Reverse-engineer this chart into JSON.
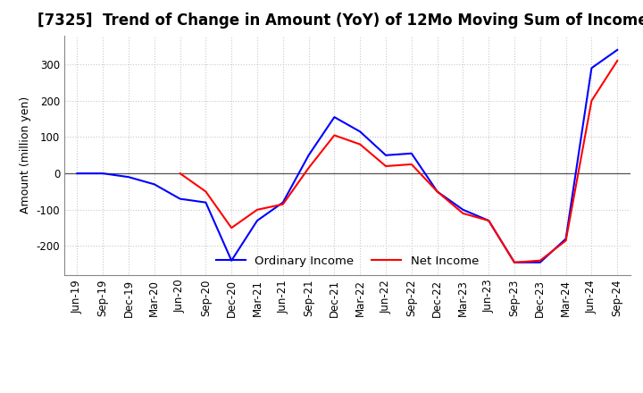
{
  "title": "[7325]  Trend of Change in Amount (YoY) of 12Mo Moving Sum of Incomes",
  "ylabel": "Amount (million yen)",
  "x_labels": [
    "Jun-19",
    "Sep-19",
    "Dec-19",
    "Mar-20",
    "Jun-20",
    "Sep-20",
    "Dec-20",
    "Mar-21",
    "Jun-21",
    "Sep-21",
    "Dec-21",
    "Mar-22",
    "Jun-22",
    "Sep-22",
    "Dec-22",
    "Mar-23",
    "Jun-23",
    "Sep-23",
    "Dec-23",
    "Mar-24",
    "Jun-24",
    "Sep-24"
  ],
  "ordinary_income": [
    0,
    0,
    -10,
    -30,
    -70,
    -80,
    -240,
    -130,
    -80,
    50,
    155,
    115,
    50,
    55,
    -50,
    -100,
    -130,
    -245,
    -245,
    -180,
    290,
    340
  ],
  "net_income": [
    null,
    null,
    null,
    null,
    0,
    -50,
    -150,
    -100,
    -85,
    15,
    105,
    80,
    20,
    25,
    -50,
    -110,
    -130,
    -245,
    -240,
    -185,
    200,
    310
  ],
  "ordinary_color": "#0000ff",
  "net_color": "#ff0000",
  "ylim": [
    -280,
    380
  ],
  "yticks": [
    -200,
    -100,
    0,
    100,
    200,
    300
  ],
  "background_color": "#ffffff",
  "grid_color": "#c8c8c8",
  "title_fontsize": 12,
  "label_fontsize": 9,
  "tick_fontsize": 8.5
}
